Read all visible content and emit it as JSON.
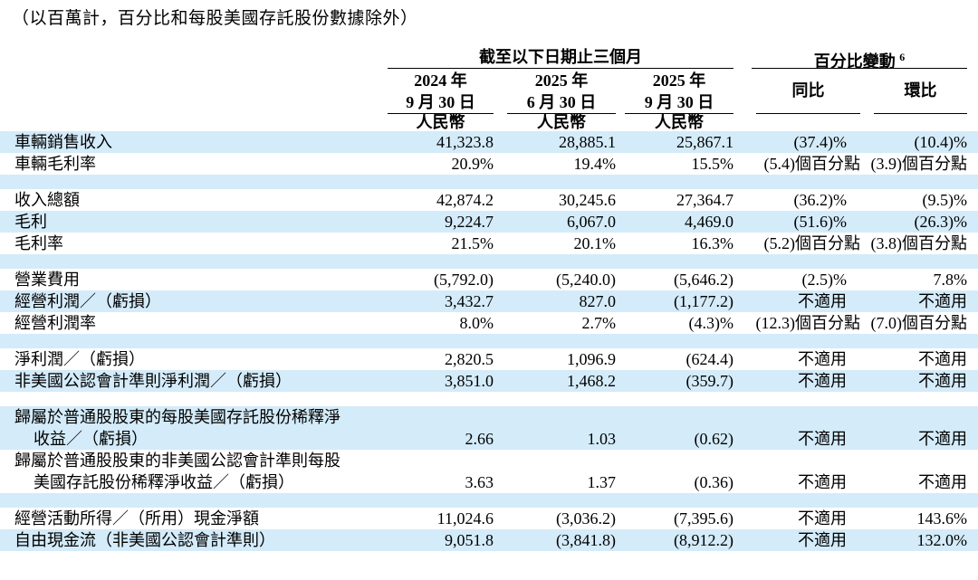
{
  "note": "（以百萬計，百分比和每股美國存託股份數據除外）",
  "table": {
    "header": {
      "periods_group": "截至以下日期止三個月",
      "pct_group": "百分比變動",
      "pct_group_footnote": "6",
      "date_columns": [
        {
          "line1": "2024 年",
          "line2": "9 月 30 日",
          "currency": "人民幣"
        },
        {
          "line1": "2025 年",
          "line2": "6 月 30 日",
          "currency": "人民幣"
        },
        {
          "line1": "2025 年",
          "line2": "9 月 30 日",
          "currency": "人民幣"
        }
      ],
      "change_columns": [
        {
          "label": "同比"
        },
        {
          "label": "環比"
        }
      ]
    },
    "rows": [
      {
        "label": "車輛銷售收入",
        "values": [
          "41,323.8",
          "28,885.1",
          "25,867.1",
          "(37.4)%",
          "(10.4)%"
        ],
        "shade": true
      },
      {
        "label": "車輛毛利率",
        "values": [
          "20.9%",
          "19.4%",
          "15.5%",
          "(5.4)個百分點",
          "(3.9)個百分點"
        ],
        "shade": false
      },
      {
        "blank": true,
        "shade": true
      },
      {
        "label": "收入總額",
        "values": [
          "42,874.2",
          "30,245.6",
          "27,364.7",
          "(36.2)%",
          "(9.5)%"
        ],
        "shade": false
      },
      {
        "label": "毛利",
        "values": [
          "9,224.7",
          "6,067.0",
          "4,469.0",
          "(51.6)%",
          "(26.3)%"
        ],
        "shade": true
      },
      {
        "label": "毛利率",
        "values": [
          "21.5%",
          "20.1%",
          "16.3%",
          "(5.2)個百分點",
          "(3.8)個百分點"
        ],
        "shade": false
      },
      {
        "blank": true,
        "shade": true
      },
      {
        "label": "營業費用",
        "values": [
          "(5,792.0)",
          "(5,240.0)",
          "(5,646.2)",
          "(2.5)%",
          "7.8%"
        ],
        "shade": false
      },
      {
        "label": "經營利潤／（虧損）",
        "values": [
          "3,432.7",
          "827.0",
          "(1,177.2)",
          "不適用",
          "不適用"
        ],
        "shade": true
      },
      {
        "label": "經營利潤率",
        "values": [
          "8.0%",
          "2.7%",
          "(4.3)%",
          "(12.3)個百分點",
          "(7.0)個百分點"
        ],
        "shade": false
      },
      {
        "blank": true,
        "shade": true
      },
      {
        "label": "淨利潤／（虧損）",
        "values": [
          "2,820.5",
          "1,096.9",
          "(624.4)",
          "不適用",
          "不適用"
        ],
        "shade": false
      },
      {
        "label": "非美國公認會計準則淨利潤／（虧損）",
        "values": [
          "3,851.0",
          "1,468.2",
          "(359.7)",
          "不適用",
          "不適用"
        ],
        "shade": true
      },
      {
        "blank": true,
        "shade": false
      },
      {
        "label2": [
          "歸屬於普通股股東的每股美國存託股份稀釋淨",
          "收益／（虧損）"
        ],
        "values": [
          "2.66",
          "1.03",
          "(0.62)",
          "不適用",
          "不適用"
        ],
        "shade": true
      },
      {
        "label2": [
          "歸屬於普通股股東的非美國公認會計準則每股",
          "美國存託股份稀釋淨收益／（虧損）"
        ],
        "values": [
          "3.63",
          "1.37",
          "(0.36)",
          "不適用",
          "不適用"
        ],
        "shade": false
      },
      {
        "blank": true,
        "shade": true
      },
      {
        "label": "經營活動所得／（所用）現金淨額",
        "values": [
          "11,024.6",
          "(3,036.2)",
          "(7,395.6)",
          "不適用",
          "143.6%"
        ],
        "shade": false
      },
      {
        "label": "自由現金流（非美國公認會計準則）",
        "values": [
          "9,051.8",
          "(3,841.8)",
          "(8,912.2)",
          "不適用",
          "132.0%"
        ],
        "shade": true
      }
    ]
  }
}
